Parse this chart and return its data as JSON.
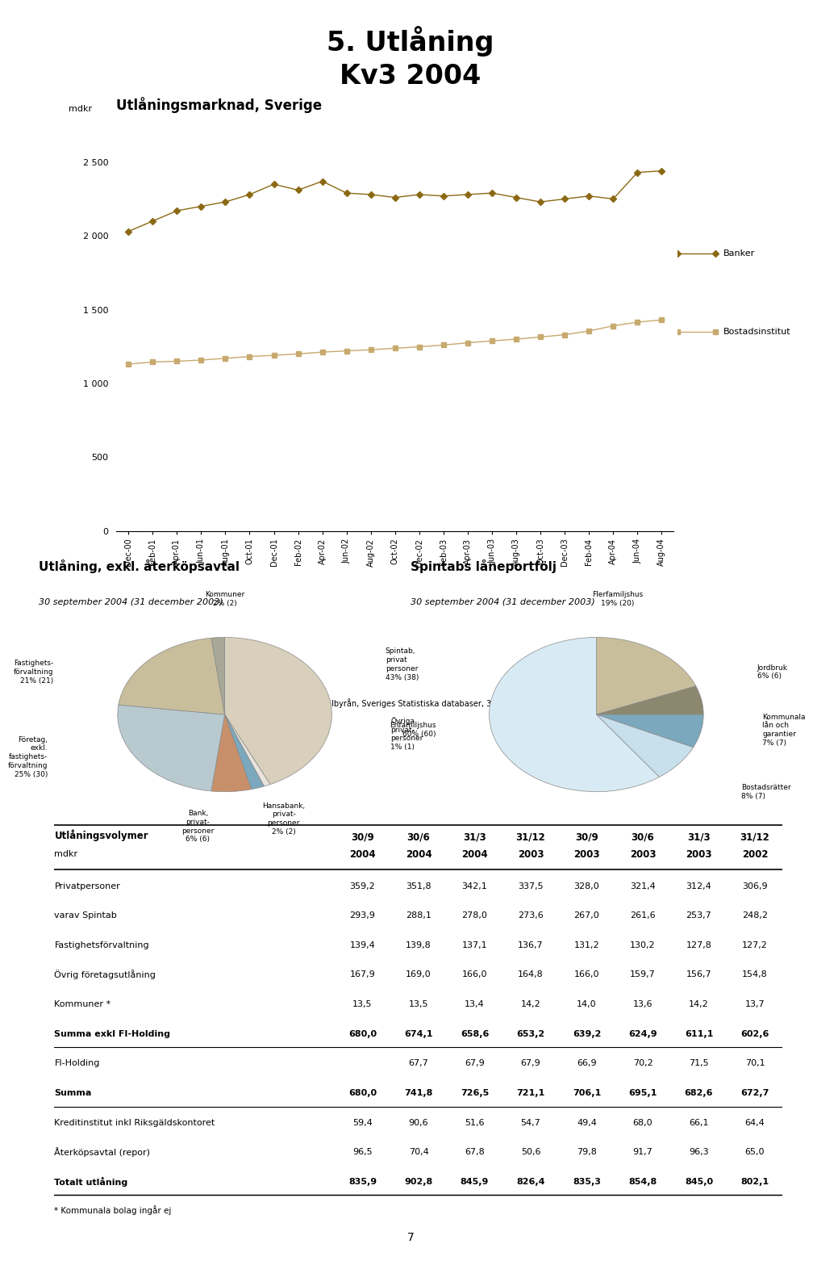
{
  "page_title": "5. Utlåning\nKv3 2004",
  "chart_title": "Utlåningsmarknad, Sverige",
  "ylabel": "mdkr",
  "source_text": "Källa: Statistiska Centralbyrån, Sveriges Statistiska databaser, 31 augusti, 2004",
  "x_labels": [
    "Dec-00",
    "Feb-01",
    "Apr-01",
    "Jun-01",
    "Aug-01",
    "Oct-01",
    "Dec-01",
    "Feb-02",
    "Apr-02",
    "Jun-02",
    "Aug-02",
    "Oct-02",
    "Dec-02",
    "Feb-03",
    "Apr-03",
    "Jun-03",
    "Aug-03",
    "Oct-03",
    "Dec-03",
    "Feb-04",
    "Apr-04",
    "Jun-04",
    "Aug-04"
  ],
  "banker_data": [
    2030,
    2100,
    2170,
    2200,
    2230,
    2280,
    2350,
    2310,
    2370,
    2290,
    2280,
    2260,
    2280,
    2270,
    2280,
    2290,
    2260,
    2230,
    2250,
    2270,
    2250,
    2430,
    2440
  ],
  "bostads_data": [
    1130,
    1145,
    1150,
    1158,
    1170,
    1182,
    1190,
    1200,
    1212,
    1220,
    1228,
    1238,
    1248,
    1260,
    1275,
    1288,
    1300,
    1314,
    1330,
    1355,
    1390,
    1415,
    1430
  ],
  "banker_color": "#8B6914",
  "bostads_color": "#C8A96E",
  "ytick_labels": [
    "0",
    "500",
    "1 000",
    "1 500",
    "2 000",
    "2 500"
  ],
  "ytick_values": [
    0,
    500,
    1000,
    1500,
    2000,
    2500
  ],
  "pie1_title": "Utlåning, exkl. återköpsavtal",
  "pie1_subtitle": "30 september 2004 (31 december 2003)",
  "pie1_values": [
    43,
    1,
    2,
    6,
    25,
    21,
    2
  ],
  "pie1_colors": [
    "#D8D0BC",
    "#E8E4DC",
    "#7BA8BC",
    "#C8906A",
    "#B8CAD0",
    "#C8BE9C",
    "#A8A898"
  ],
  "pie1_label_texts": [
    "Spintab,\nprivat\npersoner\n43% (38)",
    "Övriga\nprivat-\npersoner\n1% (1)",
    "Hansabank,\nprivat-\npersoner\n2% (2)",
    "Bank,\nprivat-\npersoner\n6% (6)",
    "Företag,\nexkl.\nfastighets-\nförvaltning\n25% (30)",
    "Fastighets-\nförvaltning\n21% (21)",
    "Kommuner\n2% (2)"
  ],
  "pie2_title": "Spintabs låneportfölj",
  "pie2_subtitle": "30 september 2004 (31 december 2003)",
  "pie2_values": [
    19,
    6,
    7,
    8,
    60
  ],
  "pie2_colors": [
    "#C8BE9C",
    "#8C8870",
    "#7BA8BC",
    "#C8E0EC",
    "#D8EAF4"
  ],
  "pie2_label_texts": [
    "Flerfamiljshus\n19% (20)",
    "Jordbruk\n6% (6)",
    "Kommunala\nlån och\ngarantier\n7% (7)",
    "Bostadsrätter\n8% (7)",
    "Enfamiljshus\n60% (60)"
  ],
  "table_headers_row1": [
    "Utlåningsvolymer",
    "30/9",
    "30/6",
    "31/3",
    "31/12",
    "30/9",
    "30/6",
    "31/3",
    "31/12"
  ],
  "table_headers_row2": [
    "mdkr",
    "2004",
    "2004",
    "2004",
    "2003",
    "2003",
    "2003",
    "2003",
    "2002"
  ],
  "table_rows": [
    [
      "Privatpersoner",
      "359,2",
      "351,8",
      "342,1",
      "337,5",
      "328,0",
      "321,4",
      "312,4",
      "306,9"
    ],
    [
      "varav Spintab",
      "293,9",
      "288,1",
      "278,0",
      "273,6",
      "267,0",
      "261,6",
      "253,7",
      "248,2"
    ],
    [
      "Fastighetsförvaltning",
      "139,4",
      "139,8",
      "137,1",
      "136,7",
      "131,2",
      "130,2",
      "127,8",
      "127,2"
    ],
    [
      "Övrig företagsutlåning",
      "167,9",
      "169,0",
      "166,0",
      "164,8",
      "166,0",
      "159,7",
      "156,7",
      "154,8"
    ],
    [
      "Kommuner *",
      "13,5",
      "13,5",
      "13,4",
      "14,2",
      "14,0",
      "13,6",
      "14,2",
      "13,7"
    ],
    [
      "Summa exkl FI-Holding",
      "680,0",
      "674,1",
      "658,6",
      "653,2",
      "639,2",
      "624,9",
      "611,1",
      "602,6"
    ],
    [
      "FI-Holding",
      "",
      "67,7",
      "67,9",
      "67,9",
      "66,9",
      "70,2",
      "71,5",
      "70,1"
    ],
    [
      "Summa",
      "680,0",
      "741,8",
      "726,5",
      "721,1",
      "706,1",
      "695,1",
      "682,6",
      "672,7"
    ],
    [
      "Kreditinstitut inkl Riksgäldskontoret",
      "59,4",
      "90,6",
      "51,6",
      "54,7",
      "49,4",
      "68,0",
      "66,1",
      "64,4"
    ],
    [
      "Återköpsavtal (repor)",
      "96,5",
      "70,4",
      "67,8",
      "50,6",
      "79,8",
      "91,7",
      "96,3",
      "65,0"
    ],
    [
      "Totalt utlåning",
      "835,9",
      "902,8",
      "845,9",
      "826,4",
      "835,3",
      "854,8",
      "845,0",
      "802,1"
    ]
  ],
  "bold_rows": [
    5,
    7,
    10
  ],
  "footnote": "* Kommunala bolag ingår ej",
  "page_number": "7"
}
